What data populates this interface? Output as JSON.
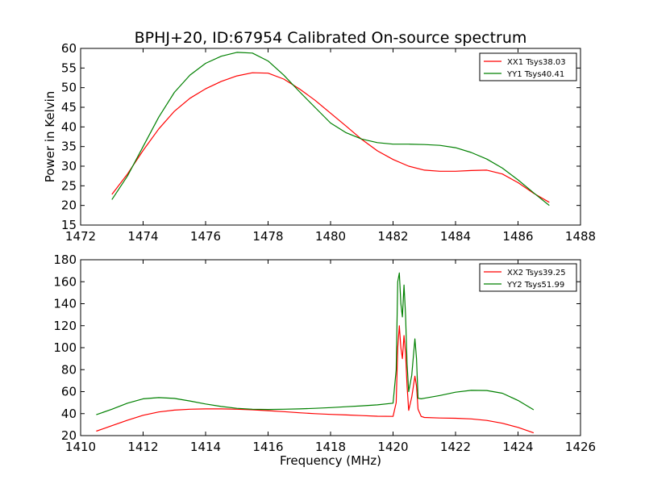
{
  "title": "BPHJ+20, ID:67954 Calibrated On-source spectrum",
  "chart_data": [
    {
      "type": "line",
      "xlabel": "",
      "ylabel": "Power in Kelvin",
      "xlim": [
        1472,
        1488
      ],
      "ylim": [
        15,
        60
      ],
      "xticks": [
        1472,
        1474,
        1476,
        1478,
        1480,
        1482,
        1484,
        1486,
        1488
      ],
      "yticks": [
        15,
        20,
        25,
        30,
        35,
        40,
        45,
        50,
        55,
        60
      ],
      "legend": "top-right",
      "grid": false,
      "series": [
        {
          "name": "XX1 Tsys38.03",
          "color": "#ff0000",
          "x": [
            1473.0,
            1473.5,
            1474.0,
            1474.5,
            1475.0,
            1475.5,
            1476.0,
            1476.5,
            1477.0,
            1477.5,
            1478.0,
            1478.5,
            1479.0,
            1479.5,
            1480.0,
            1480.5,
            1481.0,
            1481.5,
            1482.0,
            1482.5,
            1483.0,
            1483.5,
            1484.0,
            1484.5,
            1485.0,
            1485.5,
            1486.0,
            1486.5,
            1487.0
          ],
          "y": [
            22.8,
            28.0,
            34.0,
            39.5,
            44.0,
            47.3,
            49.7,
            51.6,
            53.0,
            53.8,
            53.7,
            52.2,
            49.7,
            46.8,
            43.5,
            40.2,
            36.8,
            33.9,
            31.7,
            30.0,
            29.0,
            28.7,
            28.7,
            28.9,
            29.0,
            28.0,
            25.8,
            23.1,
            20.8
          ]
        },
        {
          "name": "YY1 Tsys40.41",
          "color": "#008000",
          "x": [
            1473.0,
            1473.5,
            1474.0,
            1474.5,
            1475.0,
            1475.5,
            1476.0,
            1476.5,
            1477.0,
            1477.5,
            1478.0,
            1478.5,
            1479.0,
            1479.5,
            1480.0,
            1480.5,
            1481.0,
            1481.5,
            1482.0,
            1482.5,
            1483.0,
            1483.5,
            1484.0,
            1484.5,
            1485.0,
            1485.5,
            1486.0,
            1486.5,
            1487.0
          ],
          "y": [
            21.5,
            27.5,
            35.0,
            42.5,
            48.8,
            53.2,
            56.2,
            58.0,
            59.0,
            58.8,
            56.8,
            53.2,
            49.0,
            45.0,
            41.0,
            38.5,
            36.9,
            36.0,
            35.6,
            35.6,
            35.5,
            35.3,
            34.7,
            33.5,
            31.8,
            29.5,
            26.5,
            23.2,
            20.0
          ]
        }
      ]
    },
    {
      "type": "line",
      "xlabel": "Frequency (MHz)",
      "ylabel": "",
      "xlim": [
        1410,
        1426
      ],
      "ylim": [
        20,
        180
      ],
      "xticks": [
        1410,
        1412,
        1414,
        1416,
        1418,
        1420,
        1422,
        1424,
        1426
      ],
      "yticks": [
        20,
        40,
        60,
        80,
        100,
        120,
        140,
        160,
        180
      ],
      "legend": "top-right",
      "grid": false,
      "series": [
        {
          "name": "XX2 Tsys39.25",
          "color": "#ff0000",
          "x": [
            1410.5,
            1411.0,
            1411.5,
            1412.0,
            1412.5,
            1413.0,
            1413.5,
            1414.0,
            1414.5,
            1415.0,
            1415.5,
            1416.0,
            1416.5,
            1417.0,
            1417.5,
            1418.0,
            1418.5,
            1419.0,
            1419.5,
            1420.0,
            1420.1,
            1420.15,
            1420.2,
            1420.25,
            1420.3,
            1420.35,
            1420.4,
            1420.45,
            1420.5,
            1420.6,
            1420.7,
            1420.75,
            1420.8,
            1420.9,
            1421.0,
            1421.5,
            1422.0,
            1422.5,
            1423.0,
            1423.5,
            1424.0,
            1424.5
          ],
          "y": [
            24,
            29,
            34,
            38.5,
            41.5,
            43.2,
            44,
            44.3,
            44.3,
            44,
            43.5,
            42.7,
            41.8,
            40.8,
            40,
            39.3,
            38.8,
            38.2,
            37.6,
            37.5,
            50,
            100,
            120,
            100,
            90,
            111,
            95,
            65,
            43,
            55,
            74,
            65,
            44,
            37.5,
            36.5,
            36,
            35.8,
            35.2,
            33.8,
            31.2,
            27.5,
            22.5
          ]
        },
        {
          "name": "YY2 Tsys51.99",
          "color": "#008000",
          "x": [
            1410.5,
            1411.0,
            1411.5,
            1412.0,
            1412.5,
            1413.0,
            1413.5,
            1414.0,
            1414.5,
            1415.0,
            1415.5,
            1416.0,
            1416.5,
            1417.0,
            1417.5,
            1418.0,
            1418.5,
            1419.0,
            1419.5,
            1420.0,
            1420.1,
            1420.15,
            1420.2,
            1420.25,
            1420.3,
            1420.35,
            1420.4,
            1420.45,
            1420.5,
            1420.6,
            1420.7,
            1420.75,
            1420.8,
            1420.9,
            1421.0,
            1421.5,
            1422.0,
            1422.5,
            1423.0,
            1423.5,
            1424.0,
            1424.5
          ],
          "y": [
            39,
            44,
            49.5,
            53.5,
            54.6,
            53.8,
            51.5,
            48.8,
            46.5,
            44.8,
            44,
            43.8,
            44,
            44.3,
            44.8,
            45.5,
            46.3,
            47.1,
            48,
            49.5,
            80,
            160,
            168,
            140,
            128,
            157,
            130,
            85,
            60,
            75,
            108,
            90,
            54,
            53.5,
            54,
            56.5,
            59.5,
            61.2,
            61,
            58.5,
            52,
            43.5
          ]
        }
      ]
    }
  ]
}
